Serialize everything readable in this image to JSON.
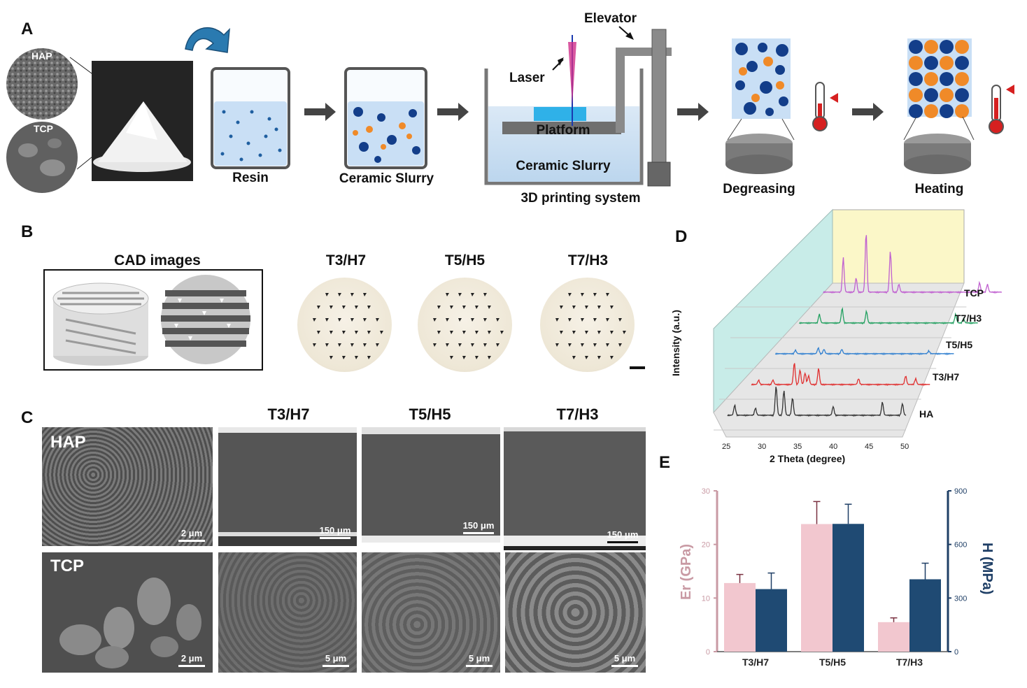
{
  "panels": {
    "a": "A",
    "b": "B",
    "c": "C",
    "d": "D",
    "e": "E"
  },
  "panel_a": {
    "hap": "HAP",
    "tcp": "TCP",
    "resin": "Resin",
    "ceramic_slurry": "Ceramic Slurry",
    "laser": "Laser",
    "elevator": "Elevator",
    "platform": "Platform",
    "tank_slurry": "Ceramic Slurry",
    "printing_system": "3D printing system",
    "degreasing": "Degreasing",
    "heating": "Heating"
  },
  "panel_b": {
    "cad_title": "CAD images",
    "samples": [
      "T3/H7",
      "T5/H5",
      "T7/H3"
    ]
  },
  "panel_c": {
    "columns": [
      "T3/H7",
      "T5/H5",
      "T7/H3"
    ],
    "row_labels": [
      "HAP",
      "TCP"
    ],
    "top_scale": [
      "2 μm",
      "150 μm",
      "150 μm",
      "150 μm"
    ],
    "bottom_scale": [
      "2 μm",
      "5 μm",
      "5 μm",
      "5 μm"
    ]
  },
  "chart_data": [
    {
      "type": "line",
      "panel": "D",
      "xlabel": "2 Theta (degree)",
      "ylabel": "Intensity (a.u.)",
      "xlim": [
        25,
        50
      ],
      "x_ticks": [
        "25",
        "30",
        "35",
        "40",
        "45",
        "50"
      ],
      "series": [
        {
          "name": "HA",
          "color": "#333333",
          "peaks": [
            [
              26,
              0.35
            ],
            [
              28.9,
              0.25
            ],
            [
              31.8,
              1.0
            ],
            [
              32.9,
              0.85
            ],
            [
              34.1,
              0.6
            ],
            [
              39.8,
              0.3
            ],
            [
              46.7,
              0.45
            ],
            [
              49.5,
              0.4
            ]
          ]
        },
        {
          "name": "T3/H7",
          "color": "#e03030",
          "peaks": [
            [
              26,
              0.15
            ],
            [
              28,
              0.15
            ],
            [
              31,
              0.75
            ],
            [
              31.8,
              0.5
            ],
            [
              32.5,
              0.4
            ],
            [
              33,
              0.3
            ],
            [
              34.4,
              0.55
            ],
            [
              40,
              0.2
            ],
            [
              46.6,
              0.3
            ],
            [
              48,
              0.2
            ]
          ]
        },
        {
          "name": "T5/H5",
          "color": "#2f7fd0",
          "peaks": [
            [
              27.8,
              0.12
            ],
            [
              31,
              0.2
            ],
            [
              31.8,
              0.15
            ],
            [
              34.3,
              0.15
            ],
            [
              46.5,
              0.1
            ]
          ]
        },
        {
          "name": "T7/H3",
          "color": "#22a060",
          "peaks": [
            [
              27.8,
              0.3
            ],
            [
              31,
              0.5
            ],
            [
              34.4,
              0.4
            ],
            [
              46.9,
              0.3
            ],
            [
              48,
              0.15
            ]
          ]
        },
        {
          "name": "TCP",
          "color": "#c060d0",
          "peaks": [
            [
              27.8,
              1.1
            ],
            [
              29.6,
              0.45
            ],
            [
              31.0,
              1.9
            ],
            [
              34.4,
              1.3
            ],
            [
              35.6,
              0.25
            ],
            [
              46.9,
              0.3
            ],
            [
              48,
              0.25
            ]
          ]
        }
      ]
    },
    {
      "type": "bar",
      "panel": "E",
      "categories": [
        "T3/H7",
        "T5/H5",
        "T7/H3"
      ],
      "series": [
        {
          "name": "Er (GPa)",
          "color": "#f2c7cf",
          "values": [
            12.8,
            23.8,
            5.5
          ],
          "errors": [
            1.6,
            4.2,
            0.8
          ],
          "axis": "left"
        },
        {
          "name": "H (MPa)",
          "color": "#1f4a73",
          "values": [
            350,
            715,
            405
          ],
          "errors": [
            90,
            110,
            90
          ],
          "axis": "right"
        }
      ],
      "ylabel_left": "Er (GPa)",
      "ylabel_right": "H (MPa)",
      "ylim_left": [
        0,
        30
      ],
      "ylim_right": [
        0,
        900
      ],
      "left_ticks": [
        "0",
        "10",
        "20",
        "30"
      ],
      "right_ticks": [
        "0",
        "300",
        "600",
        "900"
      ],
      "left_axis_color": "#c99aa4",
      "right_axis_color": "#1f3f66"
    }
  ]
}
